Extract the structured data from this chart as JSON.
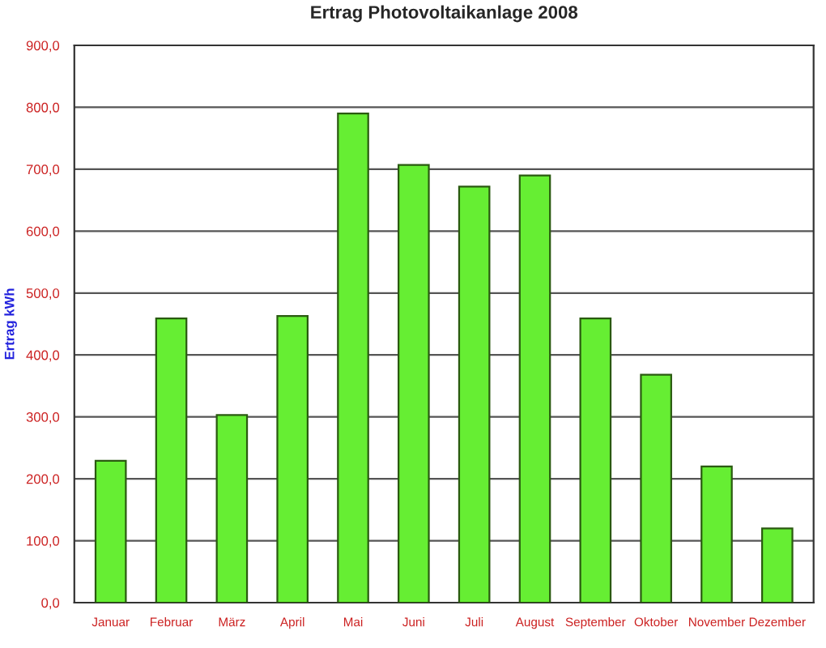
{
  "chart_data": {
    "type": "bar",
    "title": "Ertrag Photovoltaikanlage 2008",
    "ylabel": "Ertrag kWh",
    "categories": [
      "Januar",
      "Februar",
      "März",
      "April",
      "Mai",
      "Juni",
      "Juli",
      "August",
      "September",
      "Oktober",
      "November",
      "Dezember"
    ],
    "values": [
      229,
      459,
      303,
      463,
      790,
      707,
      672,
      690,
      459,
      368,
      220,
      120
    ],
    "color": "#66ee33",
    "ylim": [
      0,
      900
    ],
    "yticks": [
      {
        "value": 0,
        "label": "0,0"
      },
      {
        "value": 100,
        "label": "100,0"
      },
      {
        "value": 200,
        "label": "200,0"
      },
      {
        "value": 300,
        "label": "300,0"
      },
      {
        "value": 400,
        "label": "400,0"
      },
      {
        "value": 500,
        "label": "500,0"
      },
      {
        "value": 600,
        "label": "600,0"
      },
      {
        "value": 700,
        "label": "700,0"
      },
      {
        "value": 800,
        "label": "800,0"
      },
      {
        "value": 900,
        "label": "900,0"
      }
    ],
    "grid": "y"
  }
}
